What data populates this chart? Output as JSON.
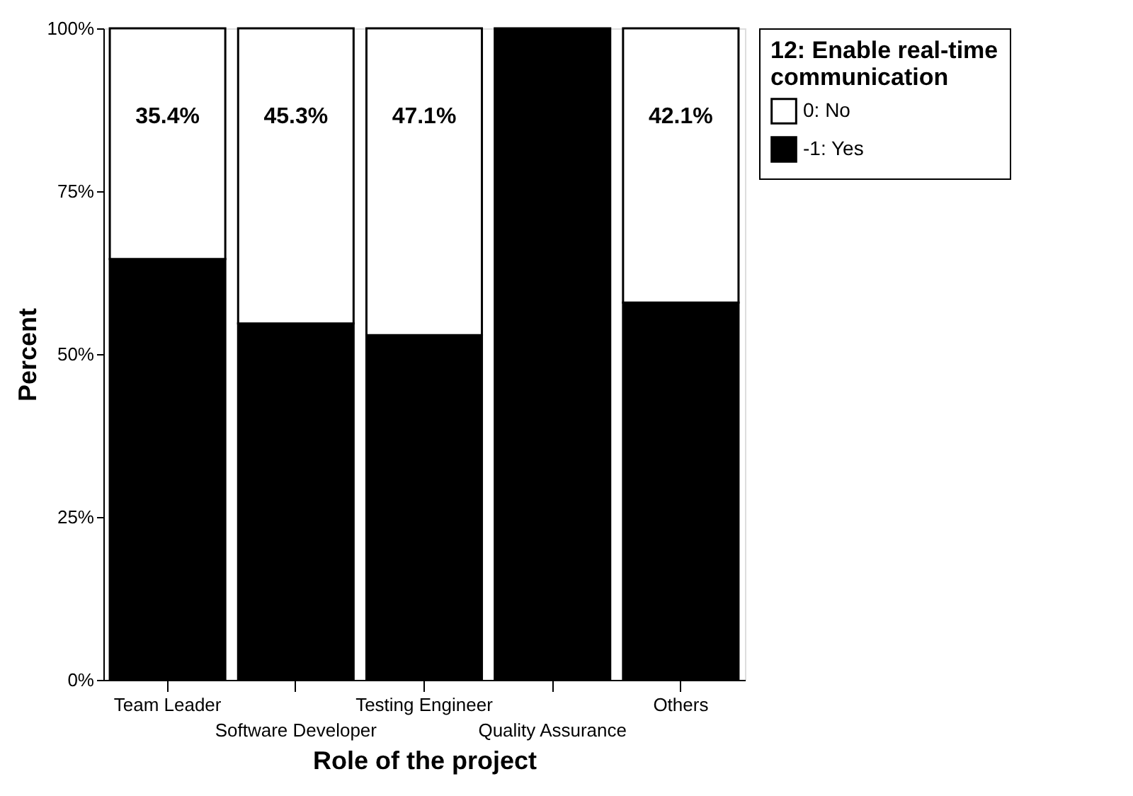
{
  "chart_data": {
    "type": "bar",
    "stacked": true,
    "xlabel": "Role of the project",
    "ylabel": "Percent",
    "legend_title": "12: Enable real-time communication",
    "legend": "top right",
    "categories": [
      "Team Leader",
      "Software Developer",
      "Testing Engineer",
      "Quality Assurance",
      "Others"
    ],
    "ylim": [
      0,
      100
    ],
    "yticks": [
      {
        "value": 0,
        "label": "0%"
      },
      {
        "value": 25,
        "label": "25%"
      },
      {
        "value": 50,
        "label": "50%"
      },
      {
        "value": 75,
        "label": "75%"
      },
      {
        "value": 100,
        "label": "100%"
      }
    ],
    "grid": false,
    "series": [
      {
        "name": "-1: Yes",
        "color": "#000000",
        "values": [
          64.6,
          54.7,
          52.9,
          100,
          57.9
        ]
      },
      {
        "name": "0: No",
        "color": "#ffffff",
        "values": [
          35.4,
          45.3,
          47.1,
          0,
          42.1
        ],
        "value_labels": [
          "35.4%",
          "45.3%",
          "47.1%",
          null,
          "42.1%"
        ]
      }
    ]
  }
}
